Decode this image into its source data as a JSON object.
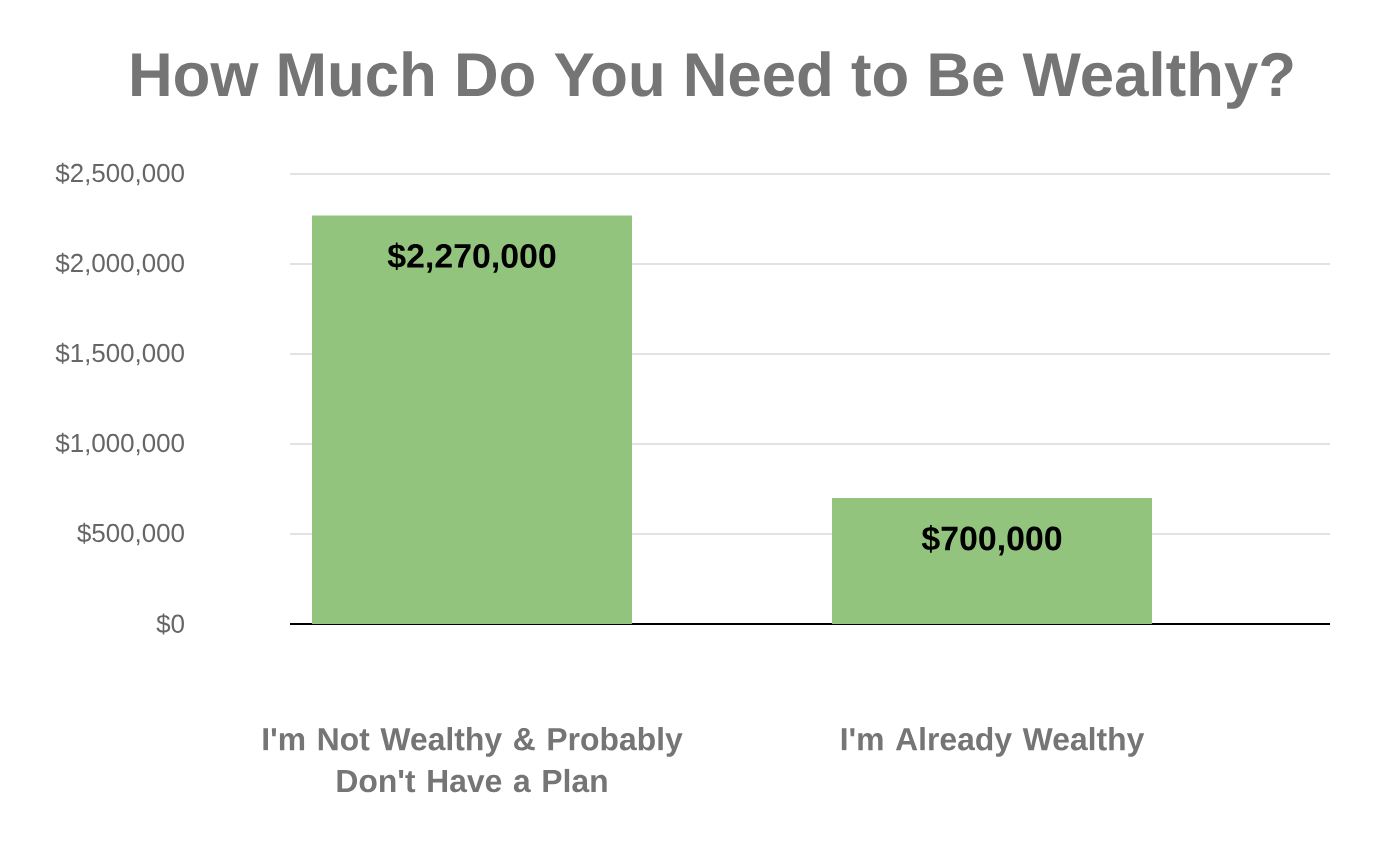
{
  "chart_data": {
    "type": "bar",
    "title": "How Much Do You Need to Be Wealthy?",
    "categories": [
      "I'm Not Wealthy & Probably Don't Have a Plan",
      "I'm Already Wealthy"
    ],
    "values": [
      2270000,
      700000
    ],
    "color": "#93c47d",
    "value_labels": [
      "$2,270,000",
      "$700,000"
    ],
    "ylim": [
      0,
      2500000
    ],
    "yticks": [
      {
        "value": 0,
        "label": "$0"
      },
      {
        "value": 500000,
        "label": "$500,000"
      },
      {
        "value": 1000000,
        "label": "$1,000,000"
      },
      {
        "value": 1500000,
        "label": "$1,500,000"
      },
      {
        "value": 2000000,
        "label": "$2,000,000"
      },
      {
        "value": 2500000,
        "label": "$2,500,000"
      }
    ],
    "grid": "y"
  }
}
